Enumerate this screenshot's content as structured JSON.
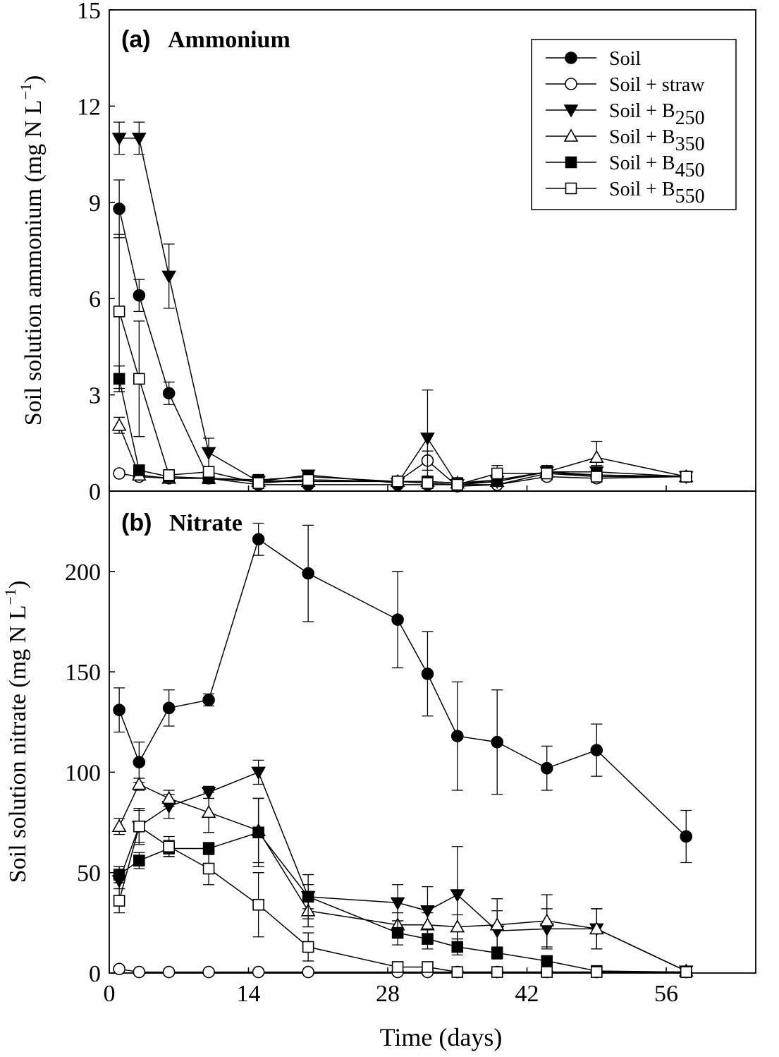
{
  "colors": {
    "ink": "#000000",
    "paper": "#ffffff"
  },
  "chart_data": [
    {
      "type": "line",
      "panel_label": "(a)",
      "panel_name": "Ammonium",
      "ylabel": "Soil solution ammonium (mg N L",
      "ylabel_sup": "−1",
      "ylabel_close": ")",
      "xlim": [
        0,
        65
      ],
      "ylim": [
        0,
        15
      ],
      "yticks": [
        {
          "v": 0,
          "label": "0"
        },
        {
          "v": 3,
          "label": "3"
        },
        {
          "v": 6,
          "label": "6"
        },
        {
          "v": 9,
          "label": "9"
        },
        {
          "v": 12,
          "label": "12"
        },
        {
          "v": 15,
          "label": "15"
        }
      ],
      "xticks": [
        0,
        14,
        28,
        42,
        56
      ],
      "legend": {
        "position": "top-right",
        "entries": [
          {
            "prefix": "Soil",
            "sub": ""
          },
          {
            "prefix": "Soil + straw",
            "sub": ""
          },
          {
            "prefix": "Soil + B",
            "sub": "250"
          },
          {
            "prefix": "Soil + B",
            "sub": "350"
          },
          {
            "prefix": "Soil + B",
            "sub": "450"
          },
          {
            "prefix": "Soil + B",
            "sub": "550"
          }
        ]
      },
      "series": [
        {
          "marker": "circle-filled",
          "x": [
            1,
            3,
            6,
            10,
            15,
            20,
            29,
            32,
            35,
            39,
            44,
            49,
            58
          ],
          "y": [
            8.8,
            6.1,
            3.05,
            0.4,
            0.2,
            0.2,
            0.2,
            0.2,
            0.2,
            0.2,
            0.55,
            0.5,
            0.45
          ],
          "err": [
            0.9,
            0.5,
            0.35,
            0.05,
            0.05,
            0.05,
            0.05,
            0.05,
            0.05,
            0.05,
            0.1,
            0.1,
            0.05
          ]
        },
        {
          "marker": "circle-open",
          "x": [
            1,
            3,
            6,
            10,
            15,
            20,
            29,
            32,
            35,
            39,
            44,
            49,
            58
          ],
          "y": [
            0.55,
            0.45,
            0.4,
            0.4,
            0.3,
            0.35,
            0.3,
            0.95,
            0.15,
            0.2,
            0.45,
            0.4,
            0.45
          ],
          "err": [
            0.05,
            0.05,
            0.05,
            0.05,
            0.05,
            0.05,
            0.05,
            0.3,
            0.05,
            0.05,
            0.1,
            0.1,
            0.05
          ]
        },
        {
          "marker": "triangle-down-filled",
          "x": [
            1,
            3,
            6,
            10,
            15,
            20,
            29,
            32,
            35,
            39,
            44,
            49,
            58
          ],
          "y": [
            11.0,
            11.0,
            6.7,
            1.2,
            0.3,
            0.5,
            0.25,
            1.65,
            0.2,
            0.3,
            0.6,
            0.6,
            0.45
          ],
          "err": [
            0.5,
            0.5,
            1.0,
            0.45,
            0.1,
            0.15,
            0.05,
            1.5,
            0.05,
            0.1,
            0.2,
            0.2,
            0.05
          ]
        },
        {
          "marker": "triangle-up-open",
          "x": [
            1,
            3,
            6,
            10,
            15,
            20,
            29,
            32,
            35,
            39,
            44,
            49,
            58
          ],
          "y": [
            2.05,
            0.5,
            0.4,
            0.4,
            0.3,
            0.3,
            0.3,
            0.3,
            0.25,
            0.3,
            0.6,
            1.05,
            0.45
          ],
          "err": [
            0.25,
            0.05,
            0.05,
            0.05,
            0.05,
            0.05,
            0.05,
            0.05,
            0.05,
            0.05,
            0.1,
            0.5,
            0.05
          ]
        },
        {
          "marker": "square-filled",
          "x": [
            1,
            3,
            6,
            10,
            15,
            20,
            29,
            32,
            35,
            39,
            44,
            49,
            58
          ],
          "y": [
            3.5,
            0.65,
            0.45,
            0.4,
            0.35,
            0.45,
            0.3,
            0.3,
            0.25,
            0.35,
            0.6,
            0.5,
            0.45
          ],
          "err": [
            0.4,
            0.1,
            0.05,
            0.05,
            0.05,
            0.05,
            0.05,
            0.05,
            0.05,
            0.05,
            0.1,
            0.1,
            0.05
          ]
        },
        {
          "marker": "square-open",
          "x": [
            1,
            3,
            6,
            10,
            15,
            20,
            29,
            32,
            35,
            39,
            44,
            49,
            58
          ],
          "y": [
            5.6,
            3.5,
            0.5,
            0.6,
            0.25,
            0.35,
            0.3,
            0.25,
            0.2,
            0.55,
            0.55,
            0.45,
            0.45
          ],
          "err": [
            2.4,
            1.8,
            0.05,
            0.1,
            0.05,
            0.05,
            0.05,
            0.05,
            0.05,
            0.25,
            0.15,
            0.1,
            0.05
          ]
        }
      ]
    },
    {
      "type": "line",
      "panel_label": "(b)",
      "panel_name": "Nitrate",
      "ylabel": "Soil solution nitrate (mg N L",
      "ylabel_sup": "−1",
      "ylabel_close": ")",
      "xlabel": "Time (days)",
      "xlim": [
        0,
        65
      ],
      "ylim": [
        0,
        240
      ],
      "yticks": [
        {
          "v": 0,
          "label": "0"
        },
        {
          "v": 50,
          "label": "50"
        },
        {
          "v": 100,
          "label": "100"
        },
        {
          "v": 150,
          "label": "150"
        },
        {
          "v": 200,
          "label": "200"
        }
      ],
      "xticks": [
        {
          "v": 0,
          "label": "0"
        },
        {
          "v": 14,
          "label": "14"
        },
        {
          "v": 28,
          "label": "28"
        },
        {
          "v": 42,
          "label": "42"
        },
        {
          "v": 56,
          "label": "56"
        }
      ],
      "series": [
        {
          "marker": "circle-filled",
          "x": [
            1,
            3,
            6,
            10,
            15,
            20,
            29,
            32,
            35,
            39,
            44,
            49,
            58
          ],
          "y": [
            131,
            105,
            132,
            136,
            216,
            199,
            176,
            149,
            118,
            115,
            102,
            111,
            68
          ],
          "err": [
            11,
            10,
            9,
            3,
            8,
            24,
            24,
            21,
            27,
            26,
            11,
            13,
            13
          ]
        },
        {
          "marker": "circle-open",
          "x": [
            1,
            3,
            6,
            10,
            15,
            20,
            29,
            32,
            35,
            39,
            44,
            49,
            58
          ],
          "y": [
            2,
            0.5,
            0.5,
            0.5,
            0.5,
            0.5,
            0.5,
            0.5,
            0.5,
            0.5,
            0.5,
            0.5,
            0.5
          ],
          "err": [
            0.5,
            0.2,
            0.2,
            0.2,
            0.2,
            0.2,
            0.2,
            0.2,
            0.2,
            0.2,
            0.2,
            0.2,
            0.2
          ]
        },
        {
          "marker": "triangle-down-filled",
          "x": [
            1,
            3,
            6,
            10,
            15,
            20,
            29,
            32,
            35,
            39,
            44,
            49,
            58
          ],
          "y": [
            46,
            73,
            83,
            90,
            100,
            38,
            35,
            31,
            39,
            21,
            22,
            22,
            1
          ],
          "err": [
            4,
            8,
            6,
            3,
            6,
            6,
            9,
            12,
            24,
            10,
            10,
            10,
            0.5
          ]
        },
        {
          "marker": "triangle-up-open",
          "x": [
            1,
            3,
            6,
            10,
            15,
            20,
            29,
            32,
            35,
            39,
            44,
            49,
            58
          ],
          "y": [
            73,
            94,
            87,
            80,
            71,
            31,
            24,
            24,
            23,
            24,
            26,
            22,
            1
          ],
          "err": [
            4,
            3,
            4,
            10,
            16,
            8,
            6,
            6,
            6,
            13,
            13,
            10,
            0.5
          ]
        },
        {
          "marker": "square-filled",
          "x": [
            1,
            3,
            6,
            10,
            15,
            20,
            29,
            32,
            35,
            39,
            44,
            49,
            58
          ],
          "y": [
            49,
            56,
            62,
            62,
            70,
            38,
            20,
            17,
            13,
            10,
            6,
            1,
            0.5
          ],
          "err": [
            4,
            4,
            4,
            3,
            17,
            11,
            6,
            5,
            4,
            3,
            2,
            1,
            0.2
          ]
        },
        {
          "marker": "square-open",
          "x": [
            1,
            3,
            6,
            10,
            15,
            20,
            29,
            32,
            35,
            39,
            44,
            49,
            58
          ],
          "y": [
            36,
            73,
            63,
            52,
            34,
            13,
            3,
            3,
            0.5,
            0.5,
            0.5,
            0.5,
            0.5
          ],
          "err": [
            6,
            9,
            5,
            8,
            16,
            7,
            2,
            2,
            0.3,
            0.3,
            0.3,
            0.3,
            0.2
          ]
        }
      ]
    }
  ]
}
